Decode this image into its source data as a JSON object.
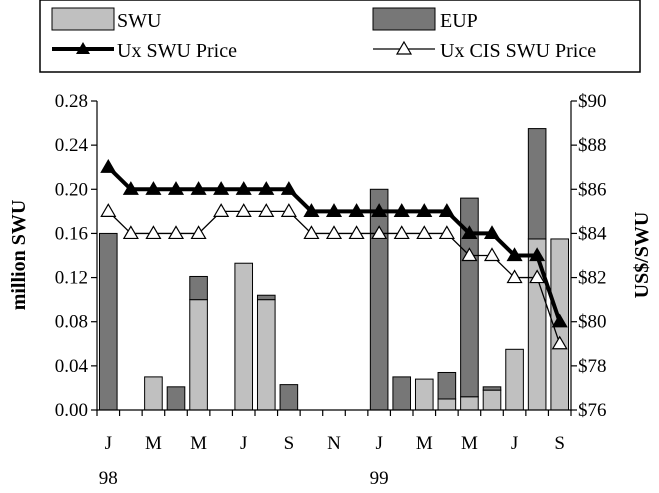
{
  "chart_data": {
    "type": "bar",
    "categories": [
      "Jan-98",
      "Feb-98",
      "Mar-98",
      "Apr-98",
      "May-98",
      "Jun-98",
      "Jul-98",
      "Aug-98",
      "Sep-98",
      "Oct-98",
      "Nov-98",
      "Dec-98",
      "Jan-99",
      "Feb-99",
      "Mar-99",
      "Apr-99",
      "May-99",
      "Jun-99",
      "Jul-99",
      "Aug-99",
      "Sep-99"
    ],
    "x_tick_labels": [
      "J",
      "",
      "M",
      "",
      "M",
      "",
      "J",
      "",
      "S",
      "",
      "N",
      "",
      "J",
      "",
      "M",
      "",
      "M",
      "",
      "J",
      "",
      "S"
    ],
    "year_labels": [
      {
        "label": "98",
        "index": 0
      },
      {
        "label": "99",
        "index": 12
      }
    ],
    "series": [
      {
        "name": "SWU",
        "kind": "bar",
        "axis": "left",
        "color": "#c0c0c0",
        "values": [
          0,
          0,
          0.03,
          0,
          0.1,
          0,
          0.133,
          0.1,
          0,
          0,
          0,
          0,
          0,
          0,
          0.028,
          0.01,
          0.012,
          0.018,
          0.055,
          0.155,
          0.155
        ]
      },
      {
        "name": "EUP",
        "kind": "bar",
        "axis": "left",
        "color": "#777777",
        "values": [
          0.16,
          0,
          0,
          0.021,
          0.021,
          0,
          0,
          0.004,
          0.023,
          0,
          0,
          0,
          0.2,
          0.03,
          0,
          0.024,
          0.18,
          0.003,
          0,
          0.1,
          0
        ]
      },
      {
        "name": "Ux SWU Price",
        "kind": "line",
        "axis": "right",
        "marker": "filled-triangle",
        "values": [
          87,
          86,
          86,
          86,
          86,
          86,
          86,
          86,
          86,
          85,
          85,
          85,
          85,
          85,
          85,
          85,
          84,
          84,
          83,
          83,
          80
        ]
      },
      {
        "name": "Ux CIS SWU Price",
        "kind": "line",
        "axis": "right",
        "marker": "open-triangle",
        "values": [
          85,
          84,
          84,
          84,
          84,
          85,
          85,
          85,
          85,
          84,
          84,
          84,
          84,
          84,
          84,
          84,
          83,
          83,
          82,
          82,
          79
        ]
      }
    ],
    "y_left": {
      "label": "million SWU",
      "lim": [
        0,
        0.28
      ],
      "ticks": [
        "0.00",
        "0.04",
        "0.08",
        "0.12",
        "0.16",
        "0.20",
        "0.24",
        "0.28"
      ],
      "values": [
        0,
        0.04,
        0.08,
        0.12,
        0.16,
        0.2,
        0.24,
        0.28
      ]
    },
    "y_right": {
      "label": "US$/SWU",
      "lim": [
        76,
        90
      ],
      "ticks": [
        "$76",
        "$78",
        "$80",
        "$82",
        "$84",
        "$86",
        "$88",
        "$90"
      ],
      "values": [
        76,
        78,
        80,
        82,
        84,
        86,
        88,
        90
      ]
    },
    "legend": {
      "placement": "top",
      "entries": [
        {
          "label": "SWU",
          "series": 0
        },
        {
          "label": "EUP",
          "series": 1
        },
        {
          "label": "Ux SWU Price",
          "series": 2
        },
        {
          "label": "Ux CIS SWU Price",
          "series": 3
        }
      ]
    },
    "grid": false
  }
}
